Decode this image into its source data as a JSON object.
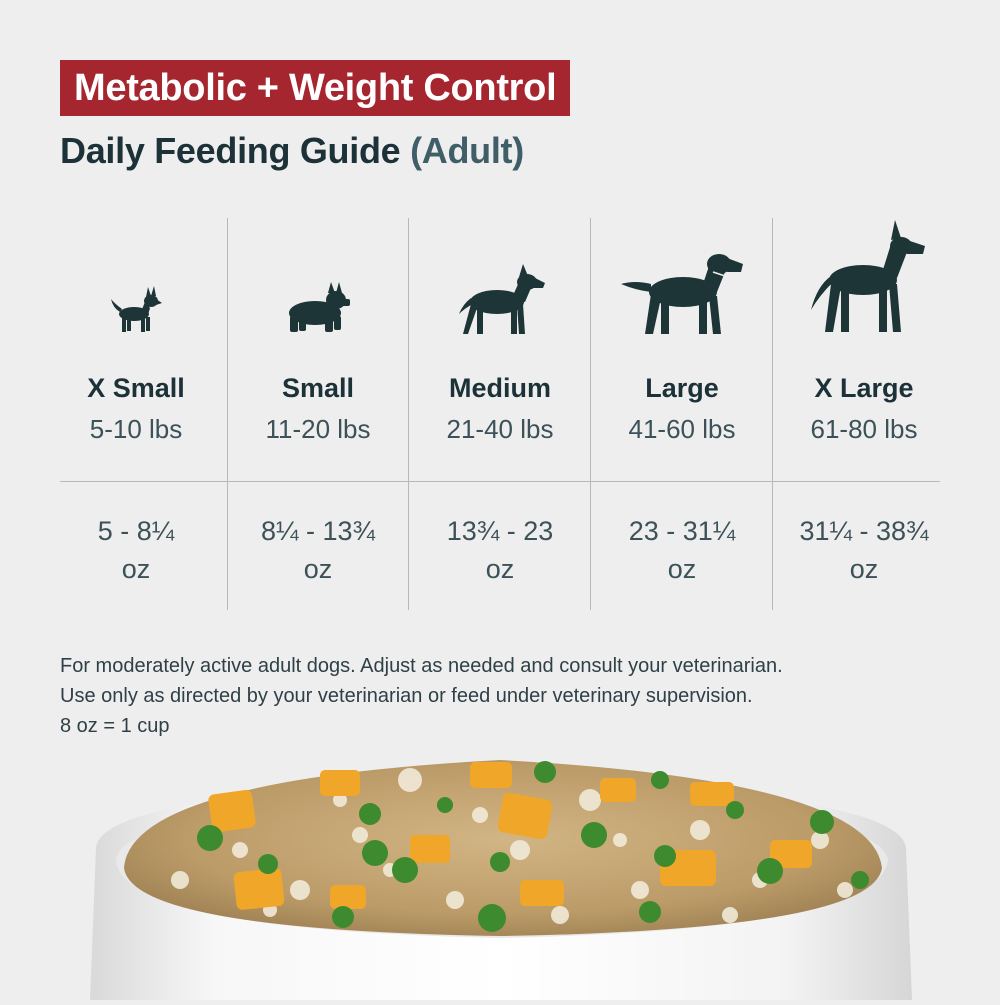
{
  "header": {
    "badge": "Metabolic + Weight Control",
    "title": "Daily Feeding Guide",
    "title_paren": "(Adult)"
  },
  "sizes": [
    {
      "name": "X Small",
      "weight": "5-10 lbs",
      "amount_line1": "5 - 8¼",
      "amount_line2": "oz",
      "icon": "chihuahua-icon"
    },
    {
      "name": "Small",
      "weight": "11-20 lbs",
      "amount_line1": "8¼ - 13¾",
      "amount_line2": "oz",
      "icon": "french-bulldog-icon"
    },
    {
      "name": "Medium",
      "weight": "21-40 lbs",
      "amount_line1": "13¾ - 23",
      "amount_line2": "oz",
      "icon": "medium-dog-icon"
    },
    {
      "name": "Large",
      "weight": "41-60 lbs",
      "amount_line1": "23 - 31¼",
      "amount_line2": "oz",
      "icon": "labrador-icon"
    },
    {
      "name": "X Large",
      "weight": "61-80 lbs",
      "amount_line1": "31¼ - 38¾",
      "amount_line2": "oz",
      "icon": "great-dane-icon"
    }
  ],
  "notes": {
    "line1": "For moderately active adult dogs. Adjust as needed and consult your veterinarian.",
    "line2": "Use only as directed by your veterinarian or feed under veterinary supervision.",
    "line3": "8 oz = 1 cup"
  },
  "colors": {
    "badge_bg": "#a62630",
    "text_dark": "#1c3138",
    "silhouette": "#1e3538",
    "background": "#eeeeee"
  }
}
